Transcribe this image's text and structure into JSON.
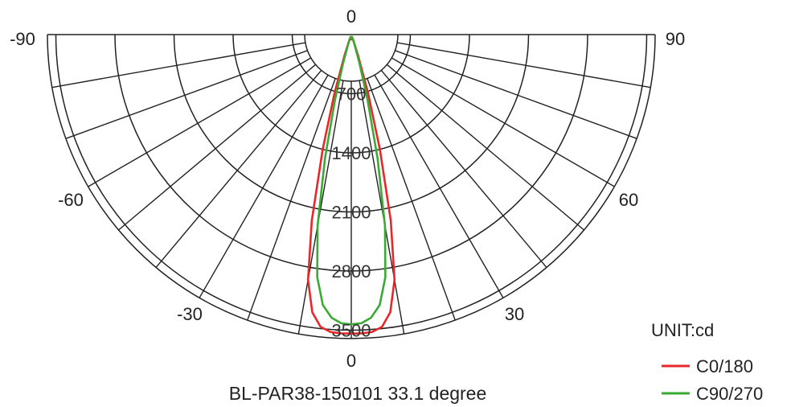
{
  "chart_data": {
    "type": "polar",
    "unit_label": "UNIT:cd",
    "caption": "BL-PAR38-150101  33.1 degree",
    "angle_labels": {
      "top": "0",
      "left_end": "-90",
      "right_end": "90",
      "left_60": "-60",
      "right_60": "60",
      "left_30": "-30",
      "right_30": "30",
      "bottom": "0"
    },
    "radial_ticks": [
      "700",
      "1400",
      "2100",
      "2800",
      "3500"
    ],
    "rmax": 3600,
    "grid": true,
    "legend_position": "bottom-right",
    "series": [
      {
        "name": "C0/180",
        "color": "#e8272a",
        "angles": [
          -20,
          -18,
          -16,
          -14,
          -12,
          -10,
          -8,
          -6,
          -4,
          -2,
          0,
          2,
          4,
          6,
          8,
          10,
          12,
          14,
          16,
          18,
          20
        ],
        "values": [
          60,
          260,
          720,
          1400,
          2250,
          2950,
          3320,
          3480,
          3530,
          3540,
          3540,
          3540,
          3530,
          3480,
          3320,
          2950,
          2250,
          1400,
          720,
          260,
          60
        ]
      },
      {
        "name": "C90/270",
        "color": "#3aaa35",
        "angles": [
          -20,
          -18,
          -16,
          -14,
          -12,
          -10,
          -8,
          -6,
          -4,
          -2,
          0,
          2,
          4,
          6,
          8,
          10,
          12,
          14,
          16,
          18,
          20
        ],
        "values": [
          30,
          120,
          350,
          800,
          1500,
          2300,
          2900,
          3220,
          3360,
          3420,
          3430,
          3420,
          3360,
          3220,
          2900,
          2300,
          1500,
          800,
          350,
          120,
          30
        ]
      }
    ]
  }
}
